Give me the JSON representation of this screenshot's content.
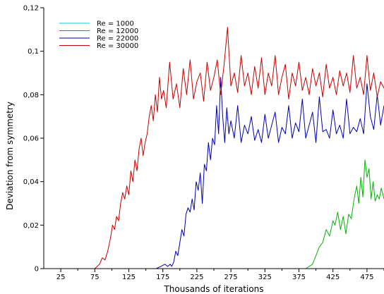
{
  "chart_data": {
    "type": "line",
    "title": "",
    "xlabel": "Thousands of iterations",
    "ylabel": "Deviation from symmetry",
    "xlim": [
      0,
      500
    ],
    "ylim": [
      0,
      0.12
    ],
    "x_ticks": [
      25,
      75,
      125,
      175,
      225,
      275,
      325,
      375,
      425,
      475
    ],
    "x_tick_labels": [
      "25",
      "75",
      "125",
      "175",
      "225",
      "275",
      "325",
      "375",
      "425",
      "475"
    ],
    "y_ticks": [
      0,
      0.02,
      0.04,
      0.06,
      0.08,
      0.1,
      0.12
    ],
    "y_tick_labels": [
      "0",
      "0,02",
      "0,04",
      "0,06",
      "0,08",
      "0,1",
      "0,12"
    ],
    "grid": false,
    "legend": "top-left",
    "series": [
      {
        "name": "Re = 1000",
        "color": "#00c8d8",
        "x": [
          0,
          500
        ],
        "y": [
          0,
          0
        ]
      },
      {
        "name": "Re = 12000",
        "color": "#00b400",
        "x": [
          0,
          385,
          395,
          400,
          405,
          410,
          415,
          420,
          425,
          428,
          432,
          436,
          440,
          444,
          448,
          452,
          456,
          460,
          463,
          466,
          469,
          472,
          475,
          478,
          481,
          484,
          487,
          490,
          493,
          496,
          500
        ],
        "y": [
          0,
          0,
          0.002,
          0.006,
          0.01,
          0.012,
          0.018,
          0.015,
          0.022,
          0.02,
          0.026,
          0.018,
          0.024,
          0.016,
          0.025,
          0.023,
          0.032,
          0.038,
          0.03,
          0.042,
          0.033,
          0.05,
          0.042,
          0.046,
          0.032,
          0.04,
          0.031,
          0.034,
          0.032,
          0.037,
          0.032
        ]
      },
      {
        "name": "Re = 22000",
        "color": "#0000b4",
        "x": [
          0,
          165,
          172,
          178,
          182,
          186,
          188,
          191,
          194,
          197,
          200,
          203,
          206,
          209,
          212,
          215,
          218,
          221,
          224,
          227,
          230,
          233,
          236,
          239,
          242,
          245,
          248,
          251,
          254,
          257,
          260,
          263,
          266,
          269,
          272,
          275,
          280,
          285,
          290,
          295,
          300,
          305,
          310,
          315,
          320,
          325,
          330,
          335,
          340,
          345,
          350,
          355,
          360,
          365,
          370,
          375,
          380,
          385,
          390,
          395,
          400,
          405,
          410,
          415,
          420,
          425,
          430,
          435,
          440,
          445,
          450,
          455,
          460,
          465,
          470,
          475,
          480,
          485,
          490,
          495,
          500
        ],
        "y": [
          0,
          0,
          0.001,
          0.002,
          0.001,
          0.002,
          0.001,
          0.003,
          0.008,
          0.006,
          0.012,
          0.018,
          0.015,
          0.025,
          0.028,
          0.026,
          0.032,
          0.027,
          0.04,
          0.036,
          0.044,
          0.03,
          0.048,
          0.045,
          0.058,
          0.05,
          0.06,
          0.057,
          0.075,
          0.062,
          0.088,
          0.07,
          0.058,
          0.074,
          0.062,
          0.068,
          0.06,
          0.075,
          0.058,
          0.066,
          0.062,
          0.07,
          0.059,
          0.064,
          0.058,
          0.071,
          0.06,
          0.066,
          0.072,
          0.058,
          0.065,
          0.062,
          0.075,
          0.06,
          0.067,
          0.063,
          0.078,
          0.06,
          0.066,
          0.072,
          0.058,
          0.079,
          0.063,
          0.064,
          0.06,
          0.073,
          0.062,
          0.066,
          0.06,
          0.078,
          0.062,
          0.065,
          0.063,
          0.069,
          0.062,
          0.085,
          0.07,
          0.064,
          0.08,
          0.066,
          0.075
        ]
      },
      {
        "name": "Re = 30000",
        "color": "#c80000",
        "x": [
          0,
          75,
          82,
          86,
          90,
          94,
          98,
          101,
          104,
          107,
          110,
          113,
          116,
          119,
          122,
          125,
          128,
          131,
          134,
          137,
          140,
          143,
          146,
          149,
          152,
          155,
          158,
          161,
          164,
          167,
          170,
          173,
          176,
          180,
          185,
          190,
          195,
          200,
          205,
          210,
          215,
          220,
          225,
          230,
          235,
          240,
          245,
          250,
          255,
          260,
          265,
          270,
          275,
          280,
          285,
          290,
          295,
          300,
          305,
          310,
          315,
          320,
          325,
          330,
          335,
          340,
          345,
          350,
          355,
          360,
          365,
          370,
          375,
          380,
          385,
          390,
          395,
          400,
          405,
          410,
          415,
          420,
          425,
          430,
          435,
          440,
          445,
          450,
          455,
          460,
          465,
          470,
          475,
          480,
          485,
          490,
          495,
          500
        ],
        "y": [
          0,
          0,
          0.002,
          0.005,
          0.004,
          0.008,
          0.014,
          0.02,
          0.018,
          0.024,
          0.022,
          0.03,
          0.035,
          0.032,
          0.038,
          0.034,
          0.045,
          0.04,
          0.05,
          0.045,
          0.055,
          0.06,
          0.052,
          0.058,
          0.062,
          0.07,
          0.075,
          0.068,
          0.08,
          0.072,
          0.088,
          0.078,
          0.082,
          0.074,
          0.095,
          0.078,
          0.085,
          0.074,
          0.092,
          0.08,
          0.096,
          0.078,
          0.086,
          0.09,
          0.077,
          0.095,
          0.082,
          0.088,
          0.096,
          0.08,
          0.094,
          0.111,
          0.084,
          0.09,
          0.081,
          0.098,
          0.084,
          0.09,
          0.08,
          0.093,
          0.083,
          0.097,
          0.08,
          0.09,
          0.084,
          0.098,
          0.08,
          0.088,
          0.094,
          0.078,
          0.09,
          0.084,
          0.095,
          0.082,
          0.088,
          0.08,
          0.092,
          0.084,
          0.09,
          0.079,
          0.094,
          0.083,
          0.088,
          0.08,
          0.091,
          0.084,
          0.09,
          0.081,
          0.098,
          0.083,
          0.088,
          0.08,
          0.098,
          0.082,
          0.09,
          0.079,
          0.086,
          0.083
        ]
      }
    ]
  }
}
